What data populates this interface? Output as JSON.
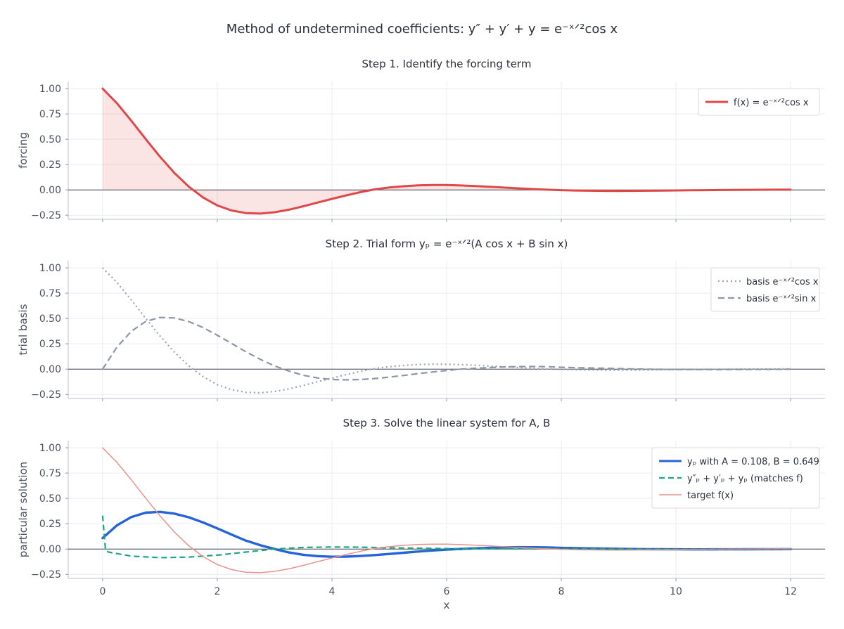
{
  "suptitle": "Method of undetermined coefficients:  y″ + y′ + y = e⁻ˣᐟ²cos x",
  "chart_data": [
    {
      "type": "line",
      "title": "Step 1.  Identify the forcing term",
      "ylabel": "forcing",
      "xlim": [
        -0.6,
        12.6
      ],
      "ylim": [
        -0.29,
        1.07
      ],
      "xticks": [
        0,
        2,
        4,
        6,
        8,
        10,
        12
      ],
      "yticks": [
        -0.25,
        0.0,
        0.25,
        0.5,
        0.75,
        1.0
      ],
      "ytick_labels": [
        "−0.25",
        "0.00",
        "0.25",
        "0.50",
        "0.75",
        "1.00"
      ],
      "show_xtick_labels": false,
      "grid": true,
      "legend": "top-right",
      "x": [
        0,
        0.25,
        0.5,
        0.75,
        1,
        1.25,
        1.5,
        1.75,
        2,
        2.25,
        2.5,
        2.75,
        3,
        3.25,
        3.5,
        3.75,
        4,
        4.25,
        4.5,
        4.75,
        5,
        5.25,
        5.5,
        5.75,
        6,
        6.25,
        6.5,
        6.75,
        7,
        7.25,
        7.5,
        7.75,
        8,
        8.25,
        8.5,
        8.75,
        9,
        9.25,
        9.5,
        9.75,
        10,
        10.25,
        10.5,
        10.75,
        11,
        11.25,
        11.5,
        11.75,
        12
      ],
      "series": [
        {
          "name": "f(x) = e⁻ˣᐟ²cos x",
          "color": "#e04848",
          "width": 3,
          "dash": "",
          "fill_to_zero": true,
          "values": [
            1.0,
            0.855,
            0.683,
            0.503,
            0.328,
            0.169,
            0.0335,
            -0.0741,
            -0.1531,
            -0.2033,
            -0.2288,
            -0.2335,
            -0.2209,
            -0.1959,
            -0.1617,
            -0.1248,
            -0.0885,
            -0.0542,
            -0.0221,
            0.0058,
            0.0233,
            0.0359,
            0.0449,
            0.0483,
            0.0478,
            0.0441,
            0.0381,
            0.0305,
            0.0228,
            0.0152,
            0.0082,
            0.0021,
            -0.0027,
            -0.0062,
            -0.0085,
            -0.0096,
            -0.0101,
            -0.0096,
            -0.0086,
            -0.0072,
            -0.0057,
            -0.0041,
            -0.0026,
            -0.0011,
            0.0,
            0.001,
            0.0017,
            0.0021,
            0.0021
          ]
        }
      ]
    },
    {
      "type": "line",
      "title": "Step 2.  Trial form  yₚ = e⁻ˣᐟ²(A cos x + B sin x)",
      "ylabel": "trial basis",
      "xlim": [
        -0.6,
        12.6
      ],
      "ylim": [
        -0.29,
        1.07
      ],
      "xticks": [
        0,
        2,
        4,
        6,
        8,
        10,
        12
      ],
      "yticks": [
        -0.25,
        0.0,
        0.25,
        0.5,
        0.75,
        1.0
      ],
      "ytick_labels": [
        "−0.25",
        "0.00",
        "0.25",
        "0.50",
        "0.75",
        "1.00"
      ],
      "show_xtick_labels": false,
      "grid": true,
      "legend": "top-right",
      "x": [
        0,
        0.25,
        0.5,
        0.75,
        1,
        1.25,
        1.5,
        1.75,
        2,
        2.25,
        2.5,
        2.75,
        3,
        3.25,
        3.5,
        3.75,
        4,
        4.25,
        4.5,
        4.75,
        5,
        5.25,
        5.5,
        5.75,
        6,
        6.25,
        6.5,
        6.75,
        7,
        7.25,
        7.5,
        7.75,
        8,
        8.25,
        8.5,
        8.75,
        9,
        9.25,
        9.5,
        9.75,
        10,
        10.25,
        10.5,
        10.75,
        11,
        11.25,
        11.5,
        11.75,
        12
      ],
      "series": [
        {
          "name": "basis  e⁻ˣᐟ²cos x",
          "color": "#9aa3af",
          "width": 2.2,
          "dash": "2,4",
          "fill_to_zero": false,
          "values": [
            1.0,
            0.855,
            0.683,
            0.503,
            0.328,
            0.169,
            0.0335,
            -0.0741,
            -0.1531,
            -0.2033,
            -0.2288,
            -0.2335,
            -0.2209,
            -0.1959,
            -0.1617,
            -0.1248,
            -0.0885,
            -0.0542,
            -0.0221,
            0.0058,
            0.0233,
            0.0359,
            0.0449,
            0.0483,
            0.0478,
            0.0441,
            0.0381,
            0.0305,
            0.0228,
            0.0152,
            0.0082,
            0.0021,
            -0.0027,
            -0.0062,
            -0.0085,
            -0.0096,
            -0.0101,
            -0.0096,
            -0.0086,
            -0.0072,
            -0.0057,
            -0.0041,
            -0.0026,
            -0.0011,
            0.0,
            0.001,
            0.0017,
            0.0021,
            0.0021
          ]
        },
        {
          "name": "basis  e⁻ˣᐟ²sin x",
          "color": "#8c96a6",
          "width": 2.2,
          "dash": "9,5",
          "fill_to_zero": false,
          "values": [
            0.0,
            0.218,
            0.373,
            0.47,
            0.51,
            0.506,
            0.47,
            0.411,
            0.3346,
            0.2533,
            0.1707,
            0.0963,
            0.0314,
            -0.0193,
            -0.061,
            -0.0873,
            -0.1025,
            -0.1063,
            -0.1026,
            -0.0929,
            -0.0788,
            -0.0625,
            -0.0454,
            -0.0287,
            -0.0139,
            -0.0002,
            0.0083,
            0.0155,
            0.0217,
            0.0251,
            0.0254,
            0.024,
            0.0181,
            0.0147,
            0.0111,
            0.0083,
            0.0046,
            0.0016,
            -0.0007,
            -0.0023,
            -0.0037,
            -0.0044,
            -0.0046,
            -0.0045,
            -0.004,
            -0.0033,
            -0.0026,
            -0.0019,
            -0.0013
          ]
        }
      ]
    },
    {
      "type": "line",
      "title": "Step 3.  Solve the linear system for A, B",
      "ylabel": "particular solution",
      "xlabel": "x",
      "xlim": [
        -0.6,
        12.6
      ],
      "ylim": [
        -0.29,
        1.07
      ],
      "xticks": [
        0,
        2,
        4,
        6,
        8,
        10,
        12
      ],
      "xtick_labels": [
        "0",
        "2",
        "4",
        "6",
        "8",
        "10",
        "12"
      ],
      "yticks": [
        -0.25,
        0.0,
        0.25,
        0.5,
        0.75,
        1.0
      ],
      "ytick_labels": [
        "−0.25",
        "0.00",
        "0.25",
        "0.50",
        "0.75",
        "1.00"
      ],
      "show_xtick_labels": true,
      "grid": true,
      "legend": "top-right",
      "x": [
        0,
        0.25,
        0.5,
        0.75,
        1,
        1.25,
        1.5,
        1.75,
        2,
        2.25,
        2.5,
        2.75,
        3,
        3.25,
        3.5,
        3.75,
        4,
        4.25,
        4.5,
        4.75,
        5,
        5.25,
        5.5,
        5.75,
        6,
        6.25,
        6.5,
        6.75,
        7,
        7.25,
        7.5,
        7.75,
        8,
        8.25,
        8.5,
        8.75,
        9,
        9.25,
        9.5,
        9.75,
        10,
        10.25,
        10.5,
        10.75,
        11,
        11.25,
        11.5,
        11.75,
        12
      ],
      "series": [
        {
          "name": "yₚ  with A = 0.108, B = 0.649",
          "color": "#2563d9",
          "width": 3.4,
          "dash": "",
          "fill_to_zero": false,
          "values": [
            0.108,
            0.234,
            0.316,
            0.359,
            0.367,
            0.35,
            0.314,
            0.263,
            0.2037,
            0.1424,
            0.0823,
            0.0374,
            0.0002,
            -0.0337,
            -0.057,
            -0.0701,
            -0.0761,
            -0.0748,
            -0.069,
            -0.0597,
            -0.0486,
            -0.0366,
            -0.0251,
            -0.0145,
            -0.0057,
            0.0004,
            0.0065,
            0.011,
            0.0166,
            0.0179,
            0.0174,
            0.0158,
            0.0114,
            0.0088,
            0.0063,
            0.0044,
            0.0019,
            0.0,
            -0.0014,
            -0.0022,
            -0.003,
            -0.0033,
            -0.0033,
            -0.003,
            -0.0026,
            -0.002,
            -0.0015,
            -0.001,
            -0.0006
          ]
        },
        {
          "name": "y″ₚ + y′ₚ + yₚ  (matches f)",
          "color": "#1aa878",
          "width": 2.2,
          "dash": "8,5",
          "fill_to_zero": false,
          "points": [
            [
              0,
              0.33
            ],
            [
              0.05,
              -0.01
            ],
            [
              0.1,
              -0.03
            ],
            [
              0.5,
              -0.07
            ],
            [
              1,
              -0.085
            ],
            [
              1.5,
              -0.08
            ],
            [
              2,
              -0.06
            ],
            [
              2.5,
              -0.03
            ],
            [
              3,
              0.0
            ],
            [
              3.5,
              0.015
            ],
            [
              4,
              0.02
            ],
            [
              4.5,
              0.018
            ],
            [
              5,
              0.012
            ],
            [
              5.5,
              0.008
            ],
            [
              6,
              0.004
            ],
            [
              6.5,
              0.002
            ],
            [
              7,
              0.003
            ],
            [
              7.5,
              0.004
            ],
            [
              8,
              0.003
            ],
            [
              9,
              0.0
            ],
            [
              10,
              -0.001
            ],
            [
              11,
              -0.0005
            ],
            [
              12,
              0.0
            ]
          ]
        },
        {
          "name": "target f(x)",
          "color": "#e8918b",
          "width": 1.5,
          "dash": "",
          "fill_to_zero": false,
          "values": [
            1.0,
            0.855,
            0.683,
            0.503,
            0.328,
            0.169,
            0.0335,
            -0.0741,
            -0.1531,
            -0.2033,
            -0.2288,
            -0.2335,
            -0.2209,
            -0.1959,
            -0.1617,
            -0.1248,
            -0.0885,
            -0.0542,
            -0.0221,
            0.0058,
            0.0233,
            0.0359,
            0.0449,
            0.0483,
            0.0478,
            0.0441,
            0.0381,
            0.0305,
            0.0228,
            0.0152,
            0.0082,
            0.0021,
            -0.0027,
            -0.0062,
            -0.0085,
            -0.0096,
            -0.0101,
            -0.0096,
            -0.0086,
            -0.0072,
            -0.0057,
            -0.0041,
            -0.0026,
            -0.0011,
            0.0,
            0.001,
            0.0017,
            0.0021,
            0.0021
          ]
        }
      ]
    }
  ]
}
